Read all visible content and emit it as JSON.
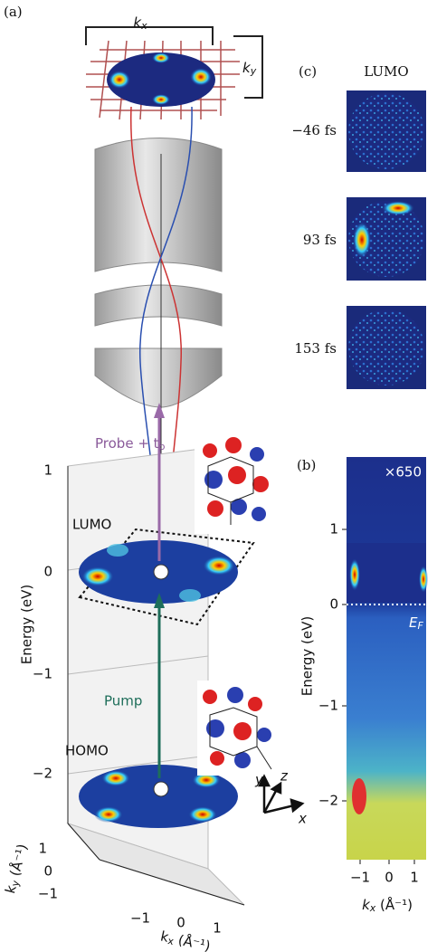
{
  "panel_a": {
    "label": "(a)",
    "grid_kx": {
      "base": "k",
      "sub": "x"
    },
    "grid_ky": {
      "base": "k",
      "sub": "y"
    },
    "probe": {
      "base": "Probe + t",
      "sub": "p"
    },
    "lumo": "LUMO",
    "pump": "Pump",
    "homo": "HOMO",
    "energy_axis": {
      "title": "Energy (eV)",
      "ticks": [
        "1",
        "0",
        "−1",
        "−2"
      ]
    },
    "ky_axis": {
      "base": "k",
      "sub": "y",
      "rest": " (Å⁻¹)",
      "ticks": [
        "1",
        "0",
        "−1"
      ]
    },
    "kx_axis": {
      "base": "k",
      "sub": "x",
      "rest": " (Å⁻¹)",
      "ticks": [
        "−1",
        "0",
        "1"
      ]
    },
    "axes3d": {
      "x": "x",
      "y": "y",
      "z": "z"
    }
  },
  "panel_c": {
    "label": "(c)",
    "title": "LUMO",
    "times": [
      "−46 fs",
      "93 fs",
      "153 fs"
    ]
  },
  "panel_b": {
    "label": "(b)",
    "scale": "×650",
    "fermi": {
      "base": "E",
      "sub": "F"
    },
    "energy_axis": {
      "title": "Energy (eV)",
      "ticks": [
        "1",
        "0",
        "−1",
        "−2"
      ]
    },
    "kx_axis": {
      "base": "k",
      "sub": "x",
      "rest": " (Å⁻¹)",
      "ticks": [
        "−1",
        "0",
        "1"
      ]
    }
  }
}
